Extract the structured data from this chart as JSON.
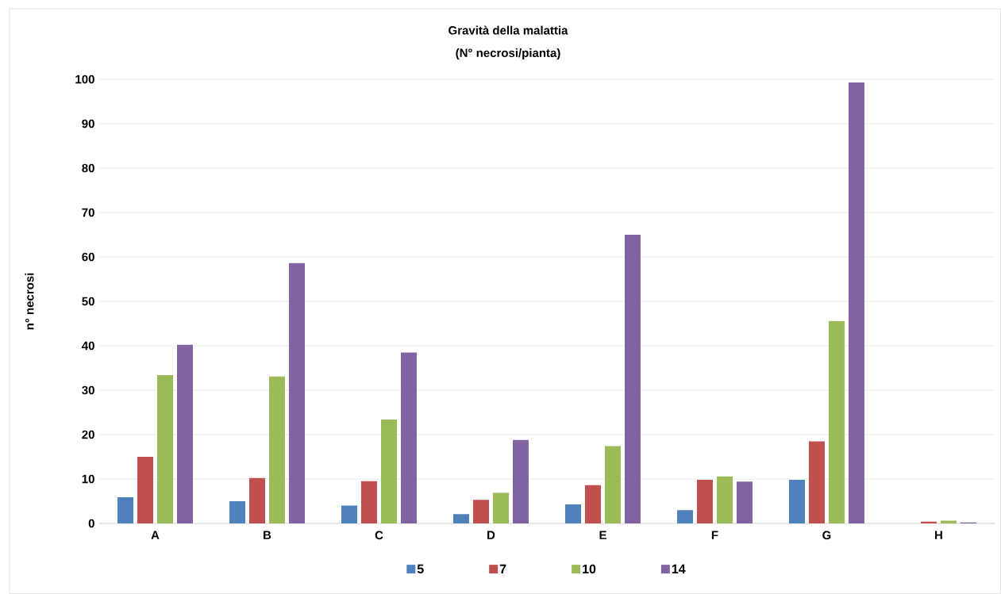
{
  "chart_data": {
    "type": "bar",
    "title": "Gravità della malattia",
    "subtitle": "(N° necrosi/pianta)",
    "ylabel": "n° necrosi",
    "categories": [
      "A",
      "B",
      "C",
      "D",
      "E",
      "F",
      "G",
      "H"
    ],
    "series": [
      {
        "name": "5",
        "color": "#4f81bd",
        "values": [
          5.9,
          5,
          4,
          2.1,
          4.3,
          3,
          9.8,
          0
        ]
      },
      {
        "name": "7",
        "color": "#c0504d",
        "values": [
          15,
          10.2,
          9.5,
          5.3,
          8.6,
          9.8,
          18.5,
          0.4
        ]
      },
      {
        "name": "10",
        "color": "#9bbb59",
        "values": [
          33.4,
          33.1,
          23.4,
          6.9,
          17.4,
          10.6,
          45.6,
          0.6
        ]
      },
      {
        "name": "14",
        "color": "#8064a2",
        "values": [
          40.2,
          58.6,
          38.5,
          18.8,
          65,
          9.4,
          99.3,
          0.2
        ]
      }
    ],
    "ylim": [
      0,
      100
    ],
    "yticks": [
      0,
      10,
      20,
      30,
      40,
      50,
      60,
      70,
      80,
      90,
      100
    ],
    "grid": "y",
    "legend": "bottom"
  }
}
